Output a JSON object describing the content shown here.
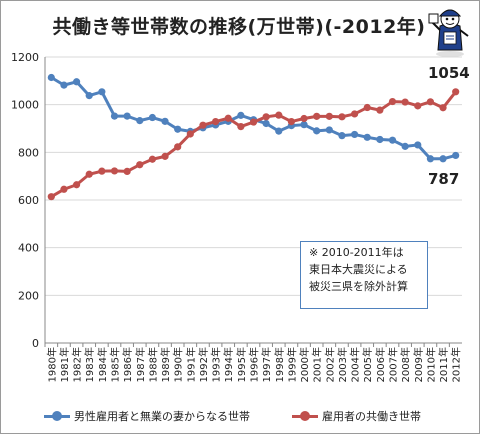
{
  "chart_data": {
    "type": "line",
    "title": "共働き等世帯数の推移(万世帯)(-2012年)",
    "x": [
      "1980年",
      "1981年",
      "1982年",
      "1983年",
      "1984年",
      "1985年",
      "1986年",
      "1987年",
      "1988年",
      "1989年",
      "1990年",
      "1991年",
      "1992年",
      "1993年",
      "1994年",
      "1995年",
      "1996年",
      "1997年",
      "1998年",
      "1999年",
      "2000年",
      "2001年",
      "2002年",
      "2003年",
      "2004年",
      "2005年",
      "2006年",
      "2007年",
      "2008年",
      "2009年",
      "2010年",
      "2011年",
      "2012年"
    ],
    "ylim": [
      0,
      1200
    ],
    "yticks": [
      0,
      200,
      400,
      600,
      800,
      1000,
      1200
    ],
    "grid": true,
    "legend_position": "bottom",
    "series": [
      {
        "name": "男性雇用者と無業の妻からなる世帯",
        "color": "#4f81bd",
        "values": [
          1114,
          1082,
          1096,
          1038,
          1054,
          952,
          952,
          933,
          946,
          930,
          897,
          888,
          903,
          915,
          930,
          955,
          937,
          921,
          889,
          912,
          916,
          890,
          894,
          870,
          875,
          863,
          854,
          851,
          825,
          831,
          773,
          773,
          787
        ]
      },
      {
        "name": "雇用者の共働き世帯",
        "color": "#c0504d",
        "values": [
          614,
          645,
          664,
          708,
          721,
          722,
          720,
          748,
          771,
          783,
          823,
          877,
          914,
          929,
          943,
          908,
          927,
          949,
          956,
          929,
          942,
          951,
          951,
          949,
          961,
          988,
          977,
          1013,
          1011,
          995,
          1012,
          987,
          1054
        ]
      }
    ],
    "annotations": {
      "end_value_blue": "787",
      "end_value_red": "1054",
      "note_lines": [
        "※ 2010-2011年は",
        "東日本大震災による",
        "被災三県を除外計算"
      ]
    }
  },
  "colors": {
    "grid": "#d9d9d9",
    "axis": "#888888",
    "note_border": "#4f81bd"
  }
}
